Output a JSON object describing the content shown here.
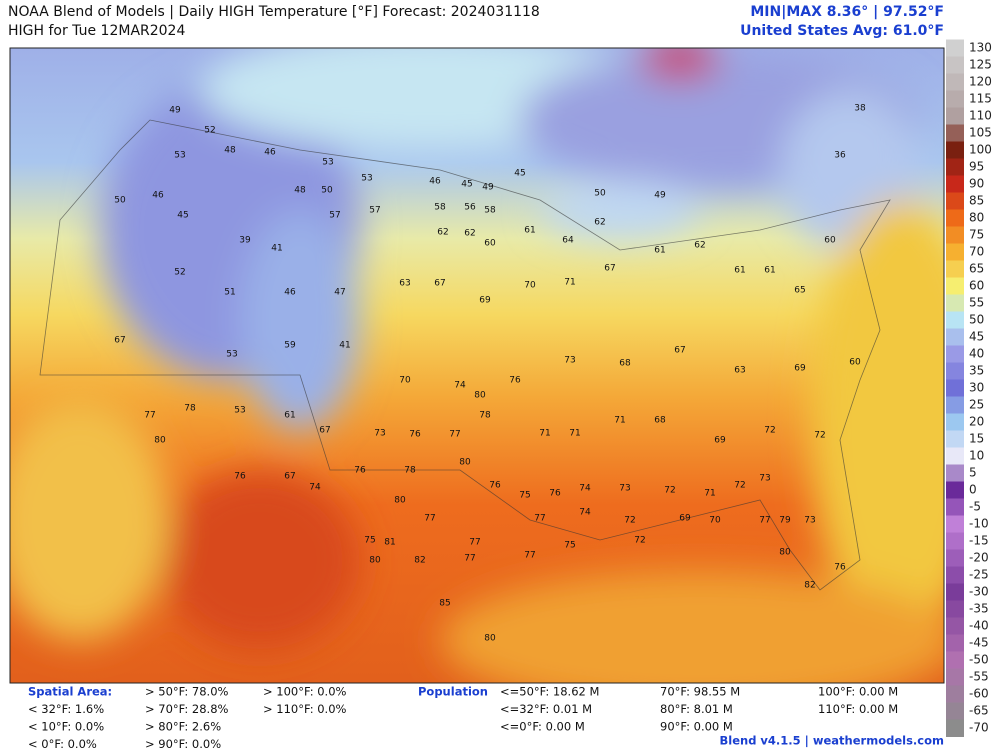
{
  "header": {
    "title": "NOAA Blend of Models | Daily HIGH Temperature [°F] Forecast: 2024031118",
    "subtitle": "HIGH for Tue 12MAR2024",
    "minmax": "MIN|MAX 8.36° | 97.52°F",
    "average": "United States Avg: 61.0°F"
  },
  "colorbar": {
    "ticks": [
      130,
      125,
      120,
      115,
      110,
      105,
      100,
      95,
      90,
      85,
      80,
      75,
      70,
      65,
      60,
      55,
      50,
      45,
      40,
      35,
      30,
      25,
      20,
      15,
      10,
      5,
      0,
      -5,
      -10,
      -15,
      -20,
      -25,
      -30,
      -35,
      -40,
      -45,
      -50,
      -55,
      -60,
      -65,
      -70
    ]
  },
  "map": {
    "station_values": [
      49,
      52,
      53,
      48,
      46,
      53,
      48,
      50,
      53,
      46,
      45,
      49,
      45,
      50,
      49,
      38,
      36,
      50,
      46,
      45,
      39,
      41,
      57,
      57,
      58,
      56,
      58,
      62,
      62,
      60,
      61,
      64,
      62,
      52,
      51,
      46,
      47,
      63,
      67,
      69,
      70,
      71,
      67,
      61,
      62,
      61,
      61,
      65,
      60,
      67,
      53,
      59,
      41,
      70,
      74,
      80,
      76,
      73,
      68,
      67,
      63,
      69,
      60,
      77,
      78,
      53,
      61,
      67,
      73,
      76,
      77,
      78,
      71,
      71,
      71,
      68,
      69,
      72,
      72,
      80,
      76,
      67,
      74,
      76,
      78,
      80,
      76,
      75,
      76,
      74,
      73,
      72,
      71,
      72,
      73,
      80,
      77,
      77,
      77,
      74,
      72,
      69,
      70,
      77,
      79,
      73,
      75,
      81,
      80,
      82,
      77,
      77,
      75,
      72,
      80,
      76,
      82,
      85,
      80
    ]
  },
  "stats": {
    "spatial_title": "Spatial Area:",
    "spatial_columns": [
      [
        "< 32°F: 1.6%",
        "< 10°F: 0.0%",
        "< 0°F: 0.0%"
      ],
      [
        "> 50°F: 78.0%",
        "> 70°F: 28.8%",
        "> 80°F: 2.6%",
        "> 90°F: 0.0%"
      ],
      [
        "> 100°F: 0.0%",
        "> 110°F: 0.0%"
      ]
    ],
    "population_title": "Population",
    "population_columns": [
      [
        "<=50°F: 18.62 M",
        "<=32°F: 0.01 M",
        "<=0°F: 0.00 M"
      ],
      [
        "70°F: 98.55 M",
        "80°F: 8.01 M",
        "90°F: 0.00 M"
      ],
      [
        "100°F: 0.00 M",
        "110°F: 0.00 M"
      ]
    ]
  },
  "footer": "Blend v4.1.5 | weathermodels.com"
}
